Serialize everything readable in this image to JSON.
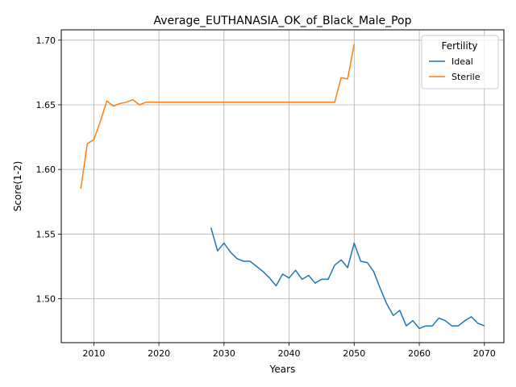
{
  "chart_data": {
    "type": "line",
    "title": "Average_EUTHANASIA_OK_of_Black_Male_Pop",
    "xlabel": "Years",
    "ylabel": "Score(1-2)",
    "xlim": [
      2005,
      2073
    ],
    "ylim": [
      1.466,
      1.708
    ],
    "xticks": [
      2010,
      2020,
      2030,
      2040,
      2050,
      2060,
      2070
    ],
    "yticks": [
      1.5,
      1.55,
      1.6,
      1.65,
      1.7
    ],
    "ytick_labels": [
      "1.50",
      "1.55",
      "1.60",
      "1.65",
      "1.70"
    ],
    "grid": true,
    "legend": {
      "title": "Fertility",
      "position": "top-right"
    },
    "series": [
      {
        "name": "Ideal",
        "color": "#1f77b4",
        "x": [
          2028,
          2029,
          2030,
          2031,
          2032,
          2033,
          2034,
          2035,
          2036,
          2037,
          2038,
          2039,
          2040,
          2041,
          2042,
          2043,
          2044,
          2045,
          2046,
          2047,
          2048,
          2049,
          2050,
          2051,
          2052,
          2053,
          2054,
          2055,
          2056,
          2057,
          2058,
          2059,
          2060,
          2061,
          2062,
          2063,
          2064,
          2065,
          2066,
          2067,
          2068,
          2069,
          2070
        ],
        "y": [
          1.555,
          1.537,
          1.543,
          1.536,
          1.531,
          1.529,
          1.529,
          1.525,
          1.521,
          1.516,
          1.51,
          1.519,
          1.516,
          1.522,
          1.515,
          1.518,
          1.512,
          1.515,
          1.515,
          1.526,
          1.53,
          1.524,
          1.543,
          1.529,
          1.528,
          1.521,
          1.508,
          1.496,
          1.487,
          1.491,
          1.479,
          1.483,
          1.477,
          1.479,
          1.479,
          1.485,
          1.483,
          1.479,
          1.479,
          1.483,
          1.486,
          1.481,
          1.479
        ]
      },
      {
        "name": "Sterile",
        "color": "#ff7f0e",
        "x": [
          2008,
          2009,
          2010,
          2011,
          2012,
          2013,
          2014,
          2015,
          2016,
          2017,
          2018,
          2019,
          2020,
          2021,
          2022,
          2023,
          2024,
          2025,
          2026,
          2027,
          2028,
          2029,
          2030,
          2031,
          2032,
          2033,
          2034,
          2035,
          2036,
          2037,
          2038,
          2039,
          2040,
          2041,
          2042,
          2043,
          2044,
          2045,
          2046,
          2047,
          2048,
          2049,
          2050
        ],
        "y": [
          1.585,
          1.62,
          1.623,
          1.637,
          1.653,
          1.649,
          1.651,
          1.652,
          1.654,
          1.65,
          1.652,
          1.652,
          1.652,
          1.652,
          1.652,
          1.652,
          1.652,
          1.652,
          1.652,
          1.652,
          1.652,
          1.652,
          1.652,
          1.652,
          1.652,
          1.652,
          1.652,
          1.652,
          1.652,
          1.652,
          1.652,
          1.652,
          1.652,
          1.652,
          1.652,
          1.652,
          1.652,
          1.652,
          1.652,
          1.652,
          1.671,
          1.67,
          1.697
        ]
      }
    ]
  }
}
